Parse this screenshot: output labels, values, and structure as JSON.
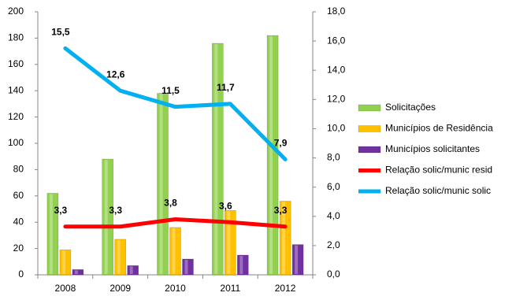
{
  "chart_data": {
    "type": "bar-line",
    "categories": [
      "2008",
      "2009",
      "2010",
      "2011",
      "2012"
    ],
    "series": [
      {
        "name": "Solicitações",
        "type": "bar",
        "color": "#92d050",
        "values": [
          62,
          88,
          138,
          176,
          182
        ]
      },
      {
        "name": "Municípios de Residência",
        "type": "bar",
        "color": "#ffc000",
        "values": [
          19,
          27,
          36,
          49,
          56
        ]
      },
      {
        "name": "Municípios solicitantes",
        "type": "bar",
        "color": "#7030a0",
        "values": [
          4,
          7,
          12,
          15,
          23
        ]
      },
      {
        "name": "Relação solic/munic resid",
        "type": "line",
        "axis": "y2",
        "color": "#ff0000",
        "values": [
          3.3,
          3.3,
          3.8,
          3.6,
          3.3
        ],
        "value_labels": [
          "3,3",
          "3,3",
          "3,8",
          "3,6",
          "3,3"
        ]
      },
      {
        "name": "Relação solic/munic solic",
        "type": "line",
        "axis": "y2",
        "color": "#00b0f0",
        "values": [
          15.5,
          12.6,
          11.5,
          11.7,
          7.9
        ],
        "value_labels": [
          "15,5",
          "12,6",
          "11,5",
          "11,7",
          "7,9"
        ]
      }
    ],
    "ylim": [
      0,
      200
    ],
    "yticks": [
      0,
      20,
      40,
      60,
      80,
      100,
      120,
      140,
      160,
      180,
      200
    ],
    "y2lim": [
      0,
      18
    ],
    "y2ticks": [
      {
        "value": 0,
        "label": "0,0"
      },
      {
        "value": 2,
        "label": "2,0"
      },
      {
        "value": 4,
        "label": "4,0"
      },
      {
        "value": 6,
        "label": "6,0"
      },
      {
        "value": 8,
        "label": "8,0"
      },
      {
        "value": 10,
        "label": "10,0"
      },
      {
        "value": 12,
        "label": "12,0"
      },
      {
        "value": 14,
        "label": "14,0"
      },
      {
        "value": 16,
        "label": "16,0"
      },
      {
        "value": 18,
        "label": "18,0"
      }
    ],
    "grid": false,
    "legend": "right"
  }
}
